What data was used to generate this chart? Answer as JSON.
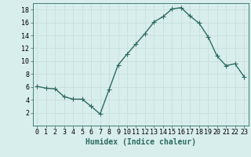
{
  "x": [
    0,
    1,
    2,
    3,
    4,
    5,
    6,
    7,
    8,
    9,
    10,
    11,
    12,
    13,
    14,
    15,
    16,
    17,
    18,
    19,
    20,
    21,
    22,
    23
  ],
  "y": [
    6.1,
    5.8,
    5.7,
    4.5,
    4.1,
    4.1,
    3.0,
    1.8,
    5.6,
    9.4,
    11.1,
    12.7,
    14.3,
    16.1,
    16.9,
    18.1,
    18.3,
    17.0,
    15.9,
    13.8,
    10.8,
    9.3,
    9.6,
    7.6
  ],
  "line_color": "#2e6b5e",
  "marker": "+",
  "marker_size": 4,
  "line_width": 1.0,
  "bg_color": "#d8eeec",
  "grid_color": "#c8dedd",
  "xlabel": "Humidex (Indice chaleur)",
  "xlabel_fontsize": 7,
  "tick_fontsize": 6,
  "ylim": [
    0,
    19
  ],
  "xlim": [
    -0.5,
    23.5
  ],
  "yticks": [
    2,
    4,
    6,
    8,
    10,
    12,
    14,
    16,
    18
  ],
  "xticks": [
    0,
    1,
    2,
    3,
    4,
    5,
    6,
    7,
    8,
    9,
    10,
    11,
    12,
    13,
    14,
    15,
    16,
    17,
    18,
    19,
    20,
    21,
    22,
    23
  ]
}
